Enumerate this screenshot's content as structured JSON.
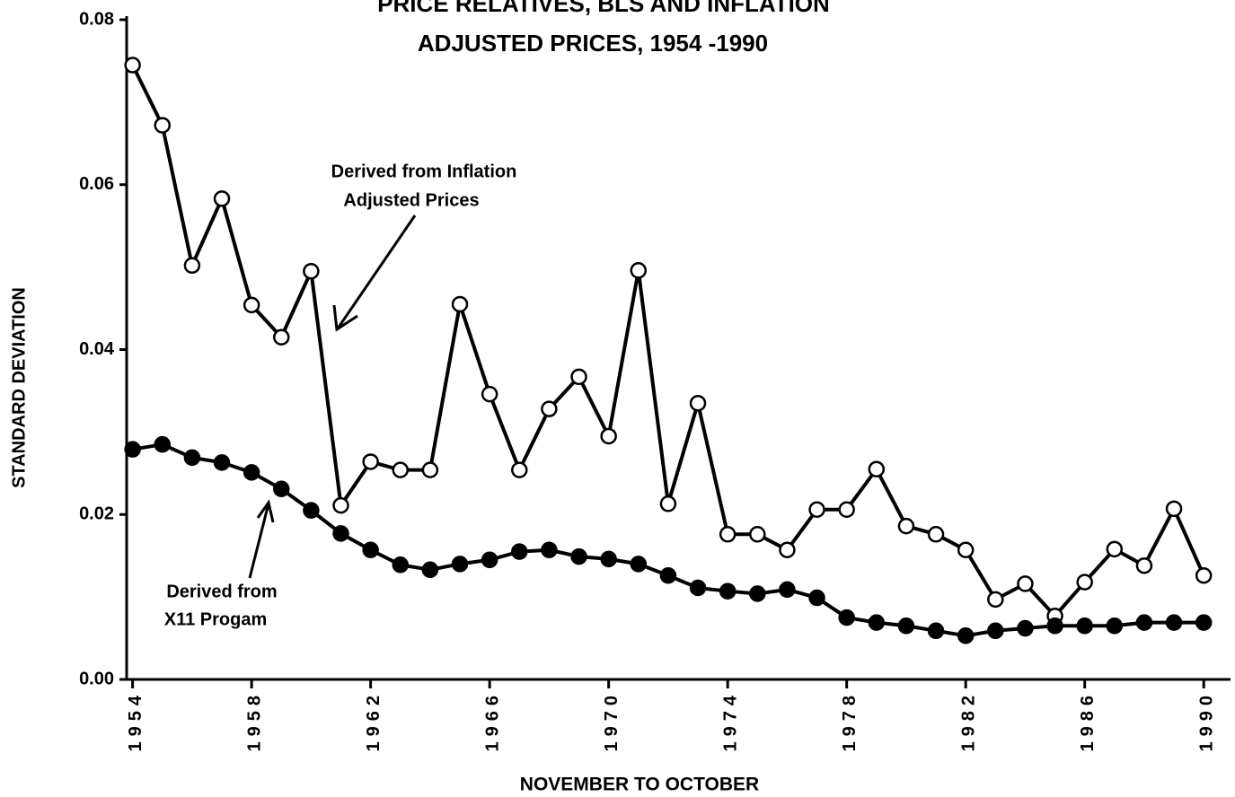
{
  "chart_data": {
    "type": "line",
    "title": [
      "PRICE RELATIVES, BLS AND INFLATION",
      "ADJUSTED PRICES, 1954 -1990"
    ],
    "xlabel": "NOVEMBER TO OCTOBER",
    "ylabel": "STANDARD  DEVIATION",
    "x": [
      1954,
      1955,
      1956,
      1957,
      1958,
      1959,
      1960,
      1961,
      1962,
      1963,
      1964,
      1965,
      1966,
      1967,
      1968,
      1969,
      1970,
      1971,
      1972,
      1973,
      1974,
      1975,
      1976,
      1977,
      1978,
      1979,
      1980,
      1981,
      1982,
      1983,
      1984,
      1985,
      1986,
      1987,
      1988,
      1989,
      1990
    ],
    "series": [
      {
        "name": "Derived from Inflation Adjusted Prices",
        "color": "#000000",
        "marker": "open",
        "values": [
          0.0745,
          0.0672,
          0.0502,
          0.0583,
          0.0454,
          0.0415,
          0.0495,
          0.0211,
          0.0264,
          0.0254,
          0.0254,
          0.0455,
          0.0346,
          0.0254,
          0.0328,
          0.0367,
          0.0295,
          0.0496,
          0.0213,
          0.0335,
          0.0176,
          0.0176,
          0.0157,
          0.0206,
          0.0206,
          0.0255,
          0.0186,
          0.0176,
          0.0157,
          0.0097,
          0.0116,
          0.0077,
          0.0118,
          0.0158,
          0.0138,
          0.0207,
          0.0126
        ]
      },
      {
        "name": "Derived from X11 Progam",
        "color": "#000000",
        "marker": "filled",
        "values": [
          0.0279,
          0.0285,
          0.0269,
          0.0263,
          0.0251,
          0.0231,
          0.0205,
          0.0177,
          0.0157,
          0.0139,
          0.0133,
          0.014,
          0.0145,
          0.0155,
          0.0157,
          0.0149,
          0.0146,
          0.014,
          0.0126,
          0.0111,
          0.0107,
          0.0104,
          0.0109,
          0.0099,
          0.0075,
          0.0069,
          0.0065,
          0.0059,
          0.0053,
          0.0059,
          0.0062,
          0.0065,
          0.0065,
          0.0065,
          0.0069,
          0.0069,
          0.0069
        ]
      }
    ],
    "annotations": [
      [
        "Derived from Inflation",
        "Adjusted Prices"
      ],
      [
        "Derived from",
        "X11 Progam"
      ]
    ],
    "xlim": [
      1953.8,
      1990.9
    ],
    "xticks": [
      1954,
      1958,
      1962,
      1966,
      1970,
      1974,
      1978,
      1982,
      1986,
      1990
    ],
    "ylim": [
      0,
      0.08
    ],
    "yticks": [
      {
        "value": 0,
        "label": "0.00"
      },
      0.02,
      0.04,
      0.06,
      0.08
    ]
  }
}
